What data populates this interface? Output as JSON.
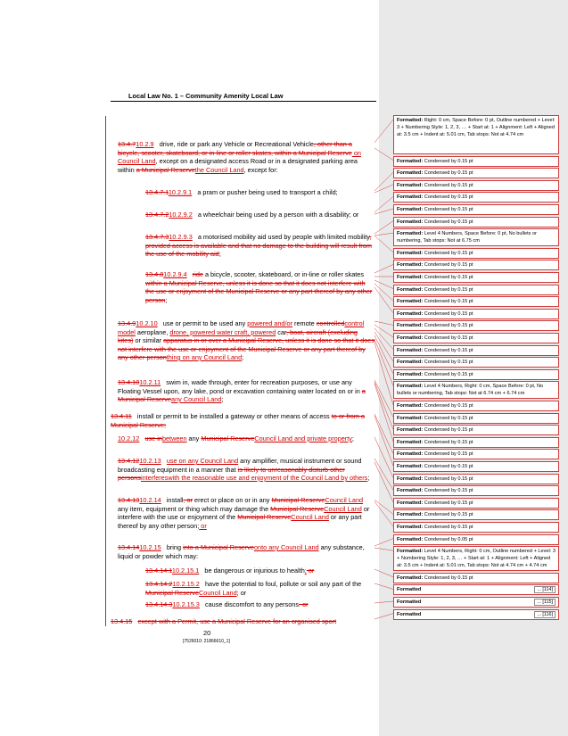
{
  "header": {
    "title": "Local Law No. 1 – Community Amenity Local Law"
  },
  "paragraphs": [
    {
      "num_del": "13.4.7",
      "num_ins": "10.2.9",
      "parts": [
        {
          "t": "drive, ride or park any Vehicle or Recreational Vehicle"
        },
        {
          "t": ", other than a bicycle, scooter, skateboard, or in-line or roller skates, within a Municipal Reserve",
          "c": "del"
        },
        {
          "t": " on Council Land",
          "c": "ins"
        },
        {
          "t": ", except on a designated access Road or in a designated parking area within "
        },
        {
          "t": "a Municipal Reserve",
          "c": "del"
        },
        {
          "t": "the Council Land",
          "c": "ins"
        },
        {
          "t": ", except for:"
        }
      ]
    },
    {
      "num_del": "13.4.7.1",
      "num_ins": "10.2.9.1",
      "parts": [
        {
          "t": "a pram or pusher being used to transport a child;"
        }
      ]
    },
    {
      "num_del": "13.4.7.2",
      "num_ins": "10.2.9.2",
      "parts": [
        {
          "t": "a wheelchair being used by a person with a disability; or"
        }
      ]
    },
    {
      "num_del": "13.4.7.3",
      "num_ins": "10.2.9.3",
      "parts": [
        {
          "t": "a motorised mobility aid used by people with limited mobility"
        },
        {
          "t": ", provided access is available and that no damage to the building will result from the use of the mobility aid",
          "c": "del"
        },
        {
          "t": ";"
        }
      ]
    },
    {
      "num_del": "13.4.8",
      "num_ins": "10.2.9.4",
      "parts": [
        {
          "t": "ride",
          "c": "del"
        },
        {
          "t": " a bicycle, scooter, skateboard, or in-line or roller skates"
        },
        {
          "t": " within a Municipal Reserve, unless it is done so that it does not interfere with the use or enjoyment of the Municipal Reserve or any part thereof by any other person",
          "c": "del"
        },
        {
          "t": ";"
        }
      ]
    },
    {
      "num_del": "13.4.9",
      "num_ins": "10.2.10",
      "parts": [
        {
          "t": "use or permit to be used any "
        },
        {
          "t": "powered and/or",
          "c": "ins"
        },
        {
          "t": " remote "
        },
        {
          "t": "controlled",
          "c": "del"
        },
        {
          "t": "control model",
          "c": "ins"
        },
        {
          "t": " aeroplane, "
        },
        {
          "t": "drone, powered water craft, powered",
          "c": "ins"
        },
        {
          "t": " car"
        },
        {
          "t": ", boat, aircraft (excluding kites)",
          "c": "del"
        },
        {
          "t": " or similar "
        },
        {
          "t": "apparatus in or over a Municipal Reserve, unless it is done so that it does not interfere with the use or enjoyment of the Municipal Reserve or any part thereof by any other person",
          "c": "del"
        },
        {
          "t": "thing on any Council Land",
          "c": "ins"
        },
        {
          "t": ";"
        }
      ]
    },
    {
      "num_del": "13.4.10",
      "num_ins": "10.2.11",
      "parts": [
        {
          "t": "swim in, wade through, enter for recreation purposes, or use any Floating Vessel upon, any lake, pond or excavation containing water located on or in "
        },
        {
          "t": "a Municipal Reserve",
          "c": "del"
        },
        {
          "t": "any Council Land",
          "c": "ins"
        },
        {
          "t": ";"
        }
      ]
    },
    {
      "num_del": "13.4.11",
      "num_ins": "",
      "parts": [
        {
          "t": "install or permit to be installed a gateway or other means of access "
        },
        {
          "t": "to or from a Municipal Reserve;",
          "c": "del"
        }
      ]
    },
    {
      "num_del": "",
      "num_ins": "10.2.12",
      "parts": [
        {
          "t": "use in",
          "c": "del"
        },
        {
          "t": "between",
          "c": "ins"
        },
        {
          "t": " any "
        },
        {
          "t": "Municipal Reserve",
          "c": "del"
        },
        {
          "t": "Council Land and private property",
          "c": "ins"
        },
        {
          "t": ";"
        }
      ]
    },
    {
      "num_del": "13.4.12",
      "num_ins": "10.2.13",
      "parts": [
        {
          "t": "use on any Council Land",
          "c": "ins"
        },
        {
          "t": " any amplifier, musical instrument or sound broadcasting equipment in a manner that "
        },
        {
          "t": "is likely to unreasonably disturb other persons",
          "c": "del"
        },
        {
          "t": "interfereswith the reasonable use and enjoyment of the Council Land by others",
          "c": "ins"
        },
        {
          "t": ";"
        }
      ]
    },
    {
      "num_del": "13.4.13",
      "num_ins": "10.2.14",
      "parts": [
        {
          "t": "install"
        },
        {
          "t": ", or",
          "c": "del"
        },
        {
          "t": " erect or place on or in any "
        },
        {
          "t": "Municipal Reserve",
          "c": "del"
        },
        {
          "t": "Council Land",
          "c": "ins"
        },
        {
          "t": " any item, equipment or thing which may damage the "
        },
        {
          "t": "Municipal Reserve",
          "c": "del"
        },
        {
          "t": "Council Land",
          "c": "ins"
        },
        {
          "t": " or interfere with the use or enjoyment of the "
        },
        {
          "t": "Municipal Reserve",
          "c": "del"
        },
        {
          "t": "Council Land",
          "c": "ins"
        },
        {
          "t": " or any part thereof by any other person;"
        },
        {
          "t": " or",
          "c": "ins"
        }
      ]
    },
    {
      "num_del": "13.4.14",
      "num_ins": "10.2.15",
      "parts": [
        {
          "t": "bring "
        },
        {
          "t": "into a Municipal Reserve",
          "c": "del"
        },
        {
          "t": "onto any Council Land",
          "c": "ins"
        },
        {
          "t": " any substance, liquid or powder which may:"
        }
      ]
    },
    {
      "num_del": "13.4.14.1",
      "num_ins": "10.2.15.1",
      "parts": [
        {
          "t": "be dangerous or injurious to health"
        },
        {
          "t": ";",
          "c": "ins"
        },
        {
          "t": " or",
          "c": "del"
        }
      ]
    },
    {
      "num_del": "13.4.14.2",
      "num_ins": "10.2.15.2",
      "parts": [
        {
          "t": "have the potential to foul, pollute or soil any part of the "
        },
        {
          "t": "Municipal Reserve",
          "c": "del"
        },
        {
          "t": "Council Land",
          "c": "ins"
        },
        {
          "t": "; or"
        }
      ]
    },
    {
      "num_del": "13.4.14.3",
      "num_ins": "10.2.15.3",
      "parts": [
        {
          "t": "cause discomfort to any persons"
        },
        {
          "t": ". or",
          "c": "del"
        }
      ]
    },
    {
      "num_del": "13.4.15",
      "num_ins": "",
      "parts": [
        {
          "t": "except with a Permit, use a Municipal Reserve for an organised sport",
          "c": "del"
        }
      ]
    }
  ],
  "footer": {
    "page": "20",
    "doc_id": "[7526010: 21866610_1]"
  },
  "comments": [
    "Formatted: Right: 0 cm, Space Before: 0 pt, Outline numbered + Level: 3 + Numbering Style: 1, 2, 3, … + Start at: 1 + Alignment: Left + Aligned at: 3.5 cm + Indent at: 5.01 cm, Tab stops: Not at 4.74 cm",
    "Formatted: Condensed by 0.15 pt",
    "Formatted: Condensed by 0.15 pt",
    "Formatted: Condensed by 0.15 pt",
    "Formatted: Condensed by 0.15 pt",
    "Formatted: Condensed by 0.15 pt",
    "Formatted: Condensed by 0.15 pt",
    "Formatted: Level 4 Numbers, Space Before: 0 pt, No bullets or numbering, Tab stops: Not at 6.75 cm",
    "Formatted: Condensed by 0.15 pt",
    "Formatted: Condensed by 0.15 pt",
    "Formatted: Condensed by 0.15 pt",
    "Formatted: Condensed by 0.15 pt",
    "Formatted: Condensed by 0.15 pt",
    "Formatted: Condensed by 0.15 pt",
    "Formatted: Condensed by 0.15 pt",
    "Formatted: Condensed by 0.15 pt",
    "Formatted: Condensed by 0.15 pt",
    "Formatted: Condensed by 0.15 pt",
    "Formatted: Condensed by 0.15 pt",
    "Formatted: Level 4 Numbers, Right: 0 cm, Space Before: 0 pt, No bullets or numbering, Tab stops: Not at 6.74 cm + 6.74 cm",
    "Formatted: Condensed by 0.15 pt",
    "Formatted: Condensed by 0.15 pt",
    "Formatted: Condensed by 0.15 pt",
    "Formatted: Condensed by 0.15 pt",
    "Formatted: Condensed by 0.15 pt",
    "Formatted: Condensed by 0.15 pt",
    "Formatted: Condensed by 0.15 pt",
    "Formatted: Condensed by 0.15 pt",
    "Formatted: Condensed by 0.15 pt",
    "Formatted: Condensed by 0.15 pt",
    "Formatted: Condensed by 0.15 pt",
    "Formatted: Condensed by 0.05 pt",
    "Formatted: Level 4 Numbers, Right: 0 cm, Outline numbered + Level: 3 + Numbering Style: 1, 2, 3, … + Start at: 1 + Alignment: Left + Aligned at: 3.5 cm + Indent at: 5.01 cm, Tab stops: Not at 4.74 cm + 4.74 cm",
    "Formatted: Condensed by 0.15 pt"
  ],
  "more_boxes": [
    {
      "label": "Formatted",
      "ref": "... [114]"
    },
    {
      "label": "Formatted",
      "ref": "... [115]"
    },
    {
      "label": "Formatted",
      "ref": "... [116]"
    }
  ]
}
